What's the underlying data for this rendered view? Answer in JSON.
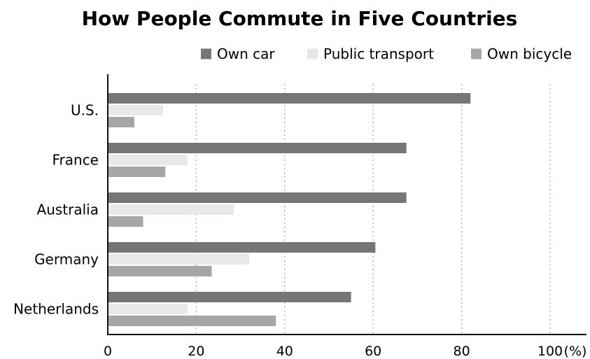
{
  "chart_data": {
    "type": "bar",
    "orientation": "horizontal",
    "title": "How People Commute in Five Countries",
    "xlabel": "",
    "ylabel": "",
    "x_unit": "(%)",
    "xlim": [
      0,
      100
    ],
    "x_ticks": [
      0,
      20,
      40,
      60,
      80,
      100
    ],
    "grid": "vertical dotted",
    "legend_position": "top-right",
    "categories": [
      "U.S.",
      "France",
      "Australia",
      "Germany",
      "Netherlands"
    ],
    "series": [
      {
        "name": "Own car",
        "color": "#767676",
        "values": [
          82,
          67.5,
          67.5,
          60.5,
          55
        ]
      },
      {
        "name": "Public transport",
        "color": "#e8e8e8",
        "values": [
          12.5,
          18,
          28.5,
          32,
          18
        ]
      },
      {
        "name": "Own bicycle",
        "color": "#a6a6a6",
        "values": [
          6,
          13,
          8,
          23.5,
          38
        ]
      }
    ]
  }
}
